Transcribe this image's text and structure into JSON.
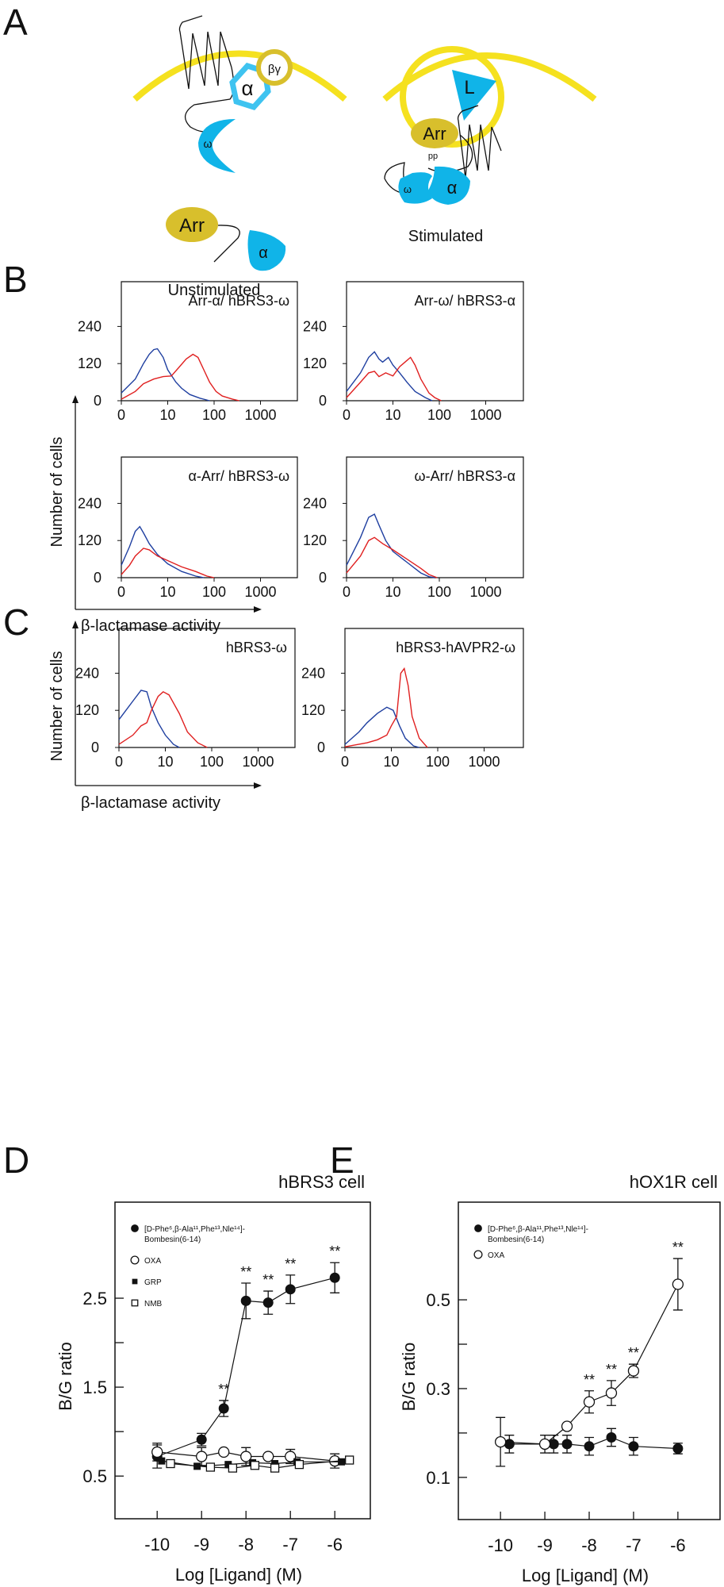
{
  "panel_letters": [
    "A",
    "B",
    "C",
    "D",
    "E"
  ],
  "colors": {
    "membrane": "#f5e11f",
    "blue": "#10b4e8",
    "gold": "#d8bf2c",
    "series_blue": "#1f3fa0",
    "series_red": "#e02020"
  },
  "diagram": {
    "unstimulated": {
      "caption": "Unstimulated",
      "alpha": "α",
      "betagamma": "βγ",
      "omega": "ω",
      "arr": "Arr",
      "alpha2": "α"
    },
    "stimulated": {
      "caption": "Stimulated",
      "ligand": "L",
      "arr": "Arr",
      "pp": "pp",
      "omega": "ω",
      "alpha": "α"
    }
  },
  "panel_b": {
    "ylabel": "Number of cells",
    "xlabel": "β-lactamase activity"
  },
  "panel_c": {
    "ylabel": "Number of cells",
    "xlabel": "β-lactamase activity"
  },
  "chart_data": [
    {
      "id": "b1",
      "type": "line",
      "title": "Arr-α/ hBRS3-ω",
      "x_scale": "log",
      "x_ticks": [
        "0",
        "10",
        "100",
        "1000"
      ],
      "y_ticks": [
        "0",
        "120",
        "240"
      ],
      "series": [
        {
          "color": "#1f3fa0",
          "points": [
            [
              1,
              25
            ],
            [
              2,
              70
            ],
            [
              3,
              120
            ],
            [
              4,
              150
            ],
            [
              5,
              165
            ],
            [
              6,
              168
            ],
            [
              8,
              140
            ],
            [
              10,
              100
            ],
            [
              15,
              60
            ],
            [
              20,
              40
            ],
            [
              30,
              20
            ],
            [
              50,
              8
            ],
            [
              80,
              0
            ]
          ]
        },
        {
          "color": "#e02020",
          "points": [
            [
              1,
              5
            ],
            [
              2,
              30
            ],
            [
              3,
              55
            ],
            [
              5,
              70
            ],
            [
              8,
              78
            ],
            [
              12,
              80
            ],
            [
              18,
              110
            ],
            [
              25,
              135
            ],
            [
              35,
              150
            ],
            [
              45,
              140
            ],
            [
              60,
              100
            ],
            [
              80,
              60
            ],
            [
              110,
              30
            ],
            [
              150,
              15
            ],
            [
              250,
              5
            ],
            [
              350,
              0
            ]
          ]
        }
      ]
    },
    {
      "id": "b2",
      "type": "line",
      "title": "Arr-ω/ hBRS3-α",
      "x_scale": "log",
      "x_ticks": [
        "0",
        "10",
        "100",
        "1000"
      ],
      "y_ticks": [
        "0",
        "120",
        "240"
      ],
      "series": [
        {
          "color": "#1f3fa0",
          "points": [
            [
              1,
              30
            ],
            [
              2,
              90
            ],
            [
              3,
              140
            ],
            [
              4,
              158
            ],
            [
              5,
              135
            ],
            [
              6,
              125
            ],
            [
              8,
              140
            ],
            [
              10,
              115
            ],
            [
              14,
              90
            ],
            [
              20,
              60
            ],
            [
              30,
              30
            ],
            [
              50,
              10
            ],
            [
              70,
              0
            ]
          ]
        },
        {
          "color": "#e02020",
          "points": [
            [
              1,
              10
            ],
            [
              2,
              60
            ],
            [
              3,
              90
            ],
            [
              4,
              95
            ],
            [
              5,
              78
            ],
            [
              7,
              90
            ],
            [
              10,
              80
            ],
            [
              14,
              110
            ],
            [
              20,
              130
            ],
            [
              24,
              140
            ],
            [
              30,
              115
            ],
            [
              40,
              70
            ],
            [
              60,
              25
            ],
            [
              80,
              10
            ],
            [
              110,
              0
            ]
          ]
        }
      ]
    },
    {
      "id": "b3",
      "type": "line",
      "title": "α-Arr/ hBRS3-ω",
      "x_scale": "log",
      "x_ticks": [
        "0",
        "10",
        "100",
        "1000"
      ],
      "y_ticks": [
        "0",
        "120",
        "240"
      ],
      "series": [
        {
          "color": "#1f3fa0",
          "points": [
            [
              1,
              40
            ],
            [
              1.5,
              100
            ],
            [
              2,
              150
            ],
            [
              2.5,
              165
            ],
            [
              3,
              145
            ],
            [
              4,
              110
            ],
            [
              6,
              75
            ],
            [
              10,
              45
            ],
            [
              20,
              20
            ],
            [
              40,
              5
            ],
            [
              60,
              0
            ]
          ]
        },
        {
          "color": "#e02020",
          "points": [
            [
              1,
              10
            ],
            [
              1.5,
              40
            ],
            [
              2,
              70
            ],
            [
              3,
              95
            ],
            [
              4,
              90
            ],
            [
              6,
              70
            ],
            [
              10,
              55
            ],
            [
              20,
              35
            ],
            [
              40,
              20
            ],
            [
              70,
              5
            ],
            [
              100,
              0
            ]
          ]
        }
      ]
    },
    {
      "id": "b4",
      "type": "line",
      "title": "ω-Arr/ hBRS3-α",
      "x_scale": "log",
      "x_ticks": [
        "0",
        "10",
        "100",
        "1000"
      ],
      "y_ticks": [
        "0",
        "120",
        "240"
      ],
      "series": [
        {
          "color": "#1f3fa0",
          "points": [
            [
              1,
              40
            ],
            [
              2,
              130
            ],
            [
              3,
              195
            ],
            [
              4,
              205
            ],
            [
              5,
              170
            ],
            [
              7,
              120
            ],
            [
              10,
              85
            ],
            [
              20,
              50
            ],
            [
              40,
              15
            ],
            [
              60,
              3
            ],
            [
              80,
              0
            ]
          ]
        },
        {
          "color": "#e02020",
          "points": [
            [
              1,
              15
            ],
            [
              2,
              70
            ],
            [
              3,
              120
            ],
            [
              4,
              130
            ],
            [
              6,
              110
            ],
            [
              10,
              90
            ],
            [
              20,
              60
            ],
            [
              40,
              30
            ],
            [
              60,
              10
            ],
            [
              90,
              0
            ]
          ]
        }
      ]
    },
    {
      "id": "c1",
      "type": "line",
      "title": "hBRS3-ω",
      "x_scale": "log",
      "x_ticks": [
        "0",
        "10",
        "100",
        "1000"
      ],
      "y_ticks": [
        "0",
        "120",
        "240"
      ],
      "series": [
        {
          "color": "#1f3fa0",
          "points": [
            [
              1,
              90
            ],
            [
              2,
              150
            ],
            [
              3,
              185
            ],
            [
              4,
              180
            ],
            [
              5,
              130
            ],
            [
              7,
              80
            ],
            [
              10,
              40
            ],
            [
              15,
              10
            ],
            [
              20,
              0
            ]
          ]
        },
        {
          "color": "#e02020",
          "points": [
            [
              1,
              10
            ],
            [
              2,
              40
            ],
            [
              3,
              70
            ],
            [
              4,
              80
            ],
            [
              5,
              120
            ],
            [
              7,
              165
            ],
            [
              9,
              180
            ],
            [
              12,
              170
            ],
            [
              20,
              110
            ],
            [
              30,
              50
            ],
            [
              50,
              15
            ],
            [
              80,
              0
            ]
          ]
        }
      ]
    },
    {
      "id": "c2",
      "type": "line",
      "title": "hBRS3-hAVPR2-ω",
      "x_scale": "log",
      "x_ticks": [
        "0",
        "10",
        "100",
        "1000"
      ],
      "y_ticks": [
        "0",
        "120",
        "240"
      ],
      "series": [
        {
          "color": "#1f3fa0",
          "points": [
            [
              1,
              10
            ],
            [
              2,
              50
            ],
            [
              3,
              80
            ],
            [
              5,
              110
            ],
            [
              8,
              130
            ],
            [
              11,
              120
            ],
            [
              15,
              70
            ],
            [
              20,
              30
            ],
            [
              30,
              5
            ],
            [
              40,
              0
            ]
          ]
        },
        {
          "color": "#e02020",
          "points": [
            [
              1,
              2
            ],
            [
              3,
              15
            ],
            [
              5,
              25
            ],
            [
              8,
              40
            ],
            [
              10,
              70
            ],
            [
              13,
              100
            ],
            [
              16,
              240
            ],
            [
              19,
              255
            ],
            [
              23,
              200
            ],
            [
              28,
              100
            ],
            [
              40,
              30
            ],
            [
              60,
              0
            ]
          ]
        }
      ]
    },
    {
      "id": "d",
      "type": "scatter",
      "title": "hBRS3 cell",
      "xlabel": "Log [Ligand] (M)",
      "ylabel": "B/G ratio",
      "x_ticks": [
        "-10",
        "-9",
        "-8",
        "-7",
        "-6"
      ],
      "y_ticks": [
        "0.5",
        "1.5",
        "2.5"
      ],
      "ylim": [
        0.02,
        3.58
      ],
      "xlim": [
        -10.95,
        -5.2
      ],
      "legend": "top-left",
      "series": [
        {
          "name": "[D-Phe⁶,β-Ala¹¹,Phe¹³,Nle¹⁴]-",
          "name2": "Bombesin(6-14)",
          "marker": "filled-circle",
          "x": [
            -10,
            -9,
            -8.5,
            -8,
            -7.5,
            -7,
            -6
          ],
          "y": [
            0.72,
            0.91,
            1.26,
            2.47,
            2.45,
            2.6,
            2.73
          ],
          "err": [
            0.13,
            0.07,
            0.09,
            0.2,
            0.13,
            0.16,
            0.17
          ],
          "sig": [
            "",
            "",
            "**",
            "**",
            "**",
            "**",
            "**"
          ]
        },
        {
          "name": "OXA",
          "marker": "open-circle",
          "x": [
            -10,
            -9,
            -8.5,
            -8,
            -7.5,
            -7,
            -6
          ],
          "y": [
            0.77,
            0.72,
            0.77,
            0.72,
            0.72,
            0.72,
            0.67
          ],
          "err": [
            0.1,
            0.1,
            0,
            0.1,
            0,
            0.08,
            0.08
          ]
        },
        {
          "name": "GRP",
          "marker": "filled-square",
          "x": [
            -9.9,
            -9.1,
            -8.4,
            -7.85,
            -7.35,
            -6.85,
            -5.85
          ],
          "y": [
            0.67,
            0.61,
            0.63,
            0.65,
            0.64,
            0.66,
            0.66
          ],
          "err": [
            0,
            0,
            0,
            0,
            0,
            0,
            0
          ]
        },
        {
          "name": "NMB",
          "marker": "open-square",
          "x": [
            -9.7,
            -8.8,
            -8.3,
            -7.8,
            -7.35,
            -6.8,
            -5.67
          ],
          "y": [
            0.64,
            0.6,
            0.59,
            0.62,
            0.59,
            0.63,
            0.68
          ],
          "err": [
            0,
            0,
            0,
            0,
            0,
            0,
            0
          ]
        }
      ]
    },
    {
      "id": "e",
      "type": "scatter",
      "title": "hOX1R cell",
      "xlabel": "Log [Ligand] (M)",
      "ylabel": "B/G ratio",
      "x_ticks": [
        "-10",
        "-9",
        "-8",
        "-7",
        "-6"
      ],
      "y_ticks": [
        "0.1",
        "0.3",
        "0.5"
      ],
      "ylim": [
        0.005,
        0.72
      ],
      "xlim": [
        -10.95,
        -5.05
      ],
      "legend": "top-left",
      "series": [
        {
          "name": "[D-Phe⁶,β-Ala¹¹,Phe¹³,Nle¹⁴]-",
          "name2": "Bombesin(6-14)",
          "marker": "filled-circle",
          "x": [
            -9.8,
            -8.8,
            -8.5,
            -8,
            -7.5,
            -7,
            -6
          ],
          "y": [
            0.175,
            0.175,
            0.175,
            0.17,
            0.19,
            0.17,
            0.165
          ],
          "err": [
            0.02,
            0.02,
            0.02,
            0.02,
            0.02,
            0.02,
            0.012
          ]
        },
        {
          "name": "OXA",
          "marker": "open-circle",
          "x": [
            -10,
            -9,
            -8.5,
            -8,
            -7.5,
            -7,
            -6
          ],
          "y": [
            0.18,
            0.175,
            0.215,
            0.27,
            0.29,
            0.34,
            0.535
          ],
          "err": [
            0.055,
            0.02,
            0,
            0.025,
            0.028,
            0.015,
            0.058
          ],
          "sig": [
            "",
            "",
            "",
            "**",
            "**",
            "**",
            "**"
          ]
        }
      ]
    }
  ]
}
